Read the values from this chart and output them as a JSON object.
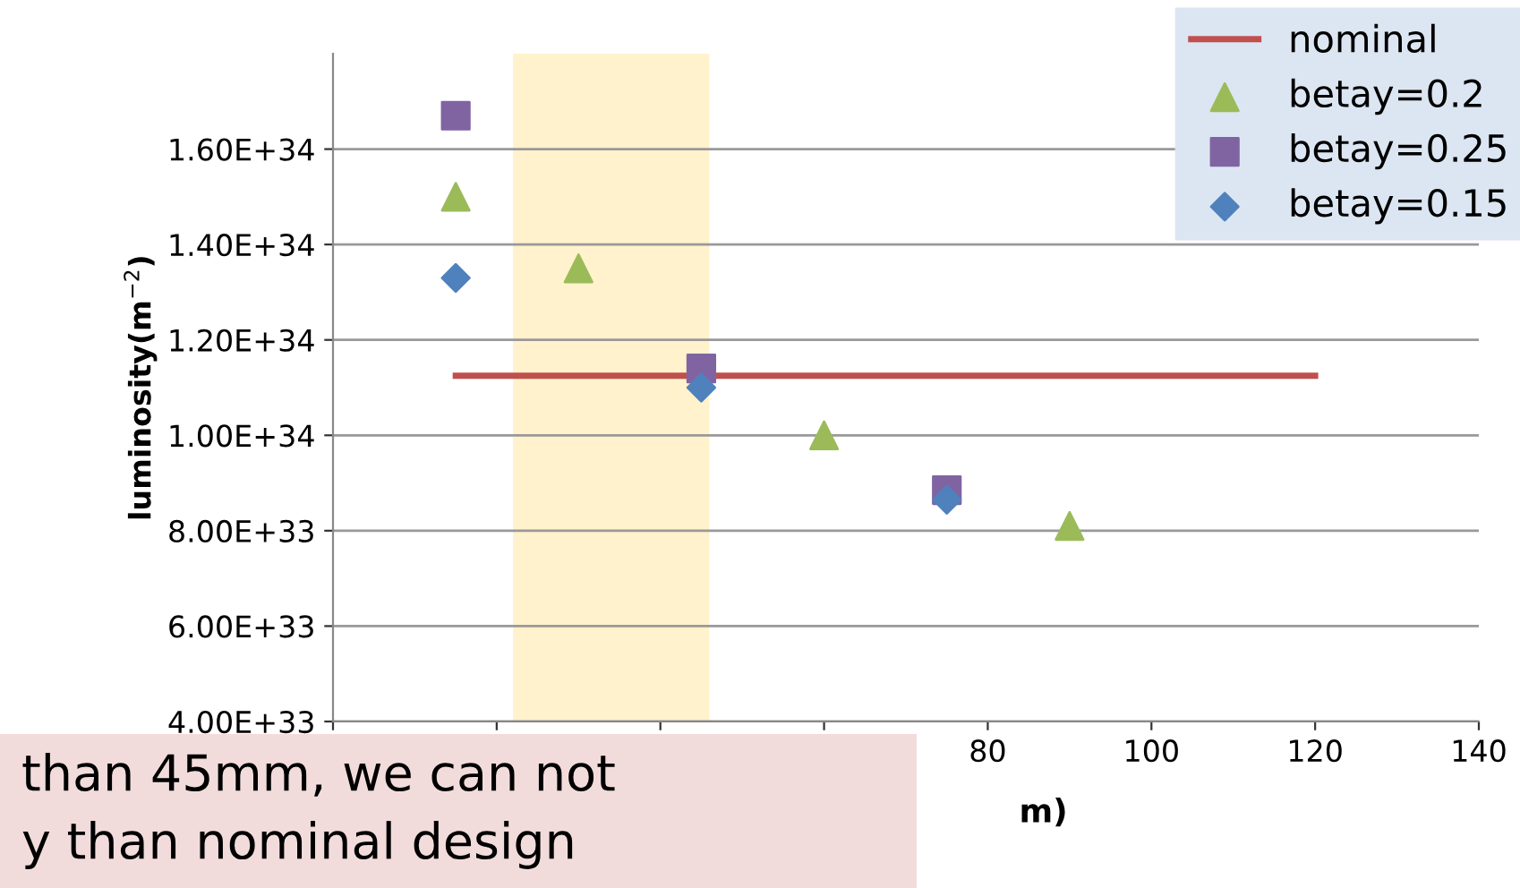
{
  "chart_data": {
    "type": "scatter",
    "ylabel": "luminosity(m$^{−2}$)",
    "xlabel": "m)",
    "xlim": [
      0,
      140
    ],
    "xticks": [
      {
        "value": 0,
        "label": null
      },
      {
        "value": 20,
        "label": null
      },
      {
        "value": 40,
        "label": null
      },
      {
        "value": 60,
        "label": null
      },
      80,
      100,
      120,
      140
    ],
    "ylim": [
      4e+33,
      1.8e+34
    ],
    "yticks": [
      {
        "value": 4e+33,
        "label": "4.00E+33"
      },
      {
        "value": 6e+33,
        "label": "6.00E+33"
      },
      {
        "value": 8e+33,
        "label": "8.00E+33"
      },
      {
        "value": 1e+34,
        "label": "1.00E+34"
      },
      {
        "value": 1.2e+34,
        "label": "1.20E+34"
      },
      {
        "value": 1.4e+34,
        "label": "1.40E+34"
      },
      {
        "value": 1.6e+34,
        "label": "1.60E+34"
      }
    ],
    "grid": "y",
    "legend": "top right",
    "bands": [
      {
        "axis": "x",
        "from": 22,
        "to": 46,
        "color": "#fff2cc"
      }
    ],
    "series": [
      {
        "name": "nominal",
        "type": "line",
        "color": "#c0504d",
        "x": [
          15,
          120
        ],
        "values": [
          1.125e+34,
          1.125e+34
        ],
        "marker": "none"
      },
      {
        "name": "betay=0.2",
        "color": "#9bbb59",
        "marker": "triangle",
        "x": [
          15,
          30,
          45,
          60,
          75,
          90
        ],
        "values": [
          1.5e+34,
          1.35e+34,
          null,
          1e+34,
          null,
          8.1e+33
        ]
      },
      {
        "name": "betay=0.25",
        "color": "#8064a2",
        "marker": "square",
        "x": [
          15,
          45,
          75
        ],
        "values": [
          1.67e+34,
          1.14e+34,
          8.85e+33
        ]
      },
      {
        "name": "betay=0.15",
        "color": "#4f81bd",
        "marker": "diamond",
        "x": [
          15,
          45,
          75
        ],
        "values": [
          1.33e+34,
          1.1e+34,
          8.65e+33
        ]
      }
    ],
    "annotations": [
      "than 45mm, we can not",
      "y than nominal design"
    ]
  }
}
